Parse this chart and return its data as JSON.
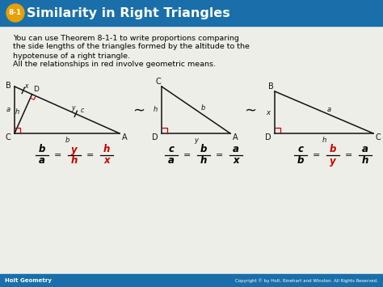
{
  "title_number": "8-1",
  "title_text": "Similarity in Right Triangles",
  "title_bg_color": "#1a6faa",
  "title_badge_color": "#e8a000",
  "body_bg_color": "#eeeee8",
  "footer_bg_color": "#1a6faa",
  "footer_left": "Holt Geometry",
  "footer_right": "Copyright © by Holt, Rinehart and Winston. All Rights Reserved.",
  "body_text_line1": "You can use Theorem 8-1-1 to write proportions comparing",
  "body_text_line2": "the side lengths of the triangles formed by the altitude to the",
  "body_text_line3": "hypotenuse of a right triangle.",
  "body_text_line4": "All the relationships in red involve geometric means.",
  "triangle_color": "#111111",
  "red_color": "#cc0000"
}
